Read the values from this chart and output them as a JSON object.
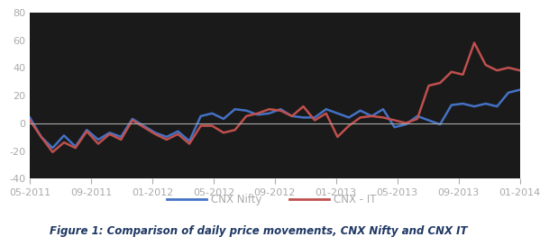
{
  "title": "Figure 1: Comparison of daily price movements, CNX Nifty and CNX IT",
  "chart_bg_color": "#1a1a1a",
  "fig_bg_color": "#ffffff",
  "title_color": "#1f3864",
  "x_labels": [
    "05-2011",
    "09-2011",
    "01-2012",
    "05-2012",
    "09-2012",
    "01-2013",
    "05-2013",
    "09-2013",
    "01-2014"
  ],
  "ylim": [
    -40,
    80
  ],
  "yticks": [
    -40,
    -20,
    0,
    20,
    40,
    60,
    80
  ],
  "cnx_nifty_color": "#4472c4",
  "cnx_it_color": "#c0504d",
  "legend_nifty": "CNX Nifty",
  "legend_it": "CNX - IT",
  "cnx_nifty": [
    4,
    -10,
    -18,
    -9,
    -17,
    -5,
    -12,
    -7,
    -10,
    3,
    -2,
    -7,
    -10,
    -6,
    -13,
    5,
    7,
    3,
    10,
    9,
    6,
    7,
    10,
    5,
    4,
    4,
    10,
    7,
    4,
    9,
    5,
    10,
    -3,
    -1,
    5,
    2,
    -1,
    13,
    14,
    12,
    14,
    12,
    22,
    24
  ],
  "cnx_it": [
    2,
    -10,
    -21,
    -14,
    -18,
    -6,
    -15,
    -8,
    -12,
    2,
    -3,
    -8,
    -12,
    -8,
    -15,
    -2,
    -2,
    -7,
    -5,
    5,
    7,
    10,
    9,
    5,
    12,
    2,
    7,
    -10,
    -2,
    4,
    5,
    4,
    2,
    0,
    3,
    27,
    29,
    37,
    35,
    58,
    42,
    38,
    40,
    38
  ],
  "zero_line_color": "#aaaaaa",
  "spine_color": "#555555",
  "tick_color": "#aaaaaa",
  "title_fontsize": 8.5,
  "tick_fontsize": 8,
  "legend_fontsize": 8.5,
  "linewidth": 1.8
}
